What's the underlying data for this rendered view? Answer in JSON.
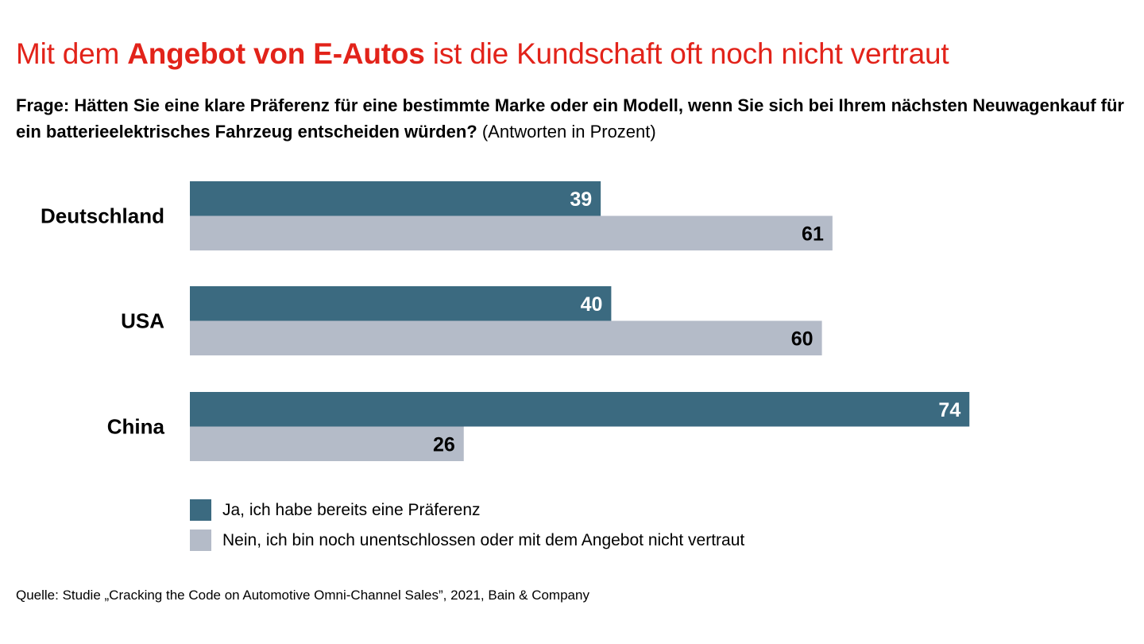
{
  "header": {
    "title_pre": "Mit dem ",
    "title_bold": "Angebot von E-Autos",
    "title_post": " ist die Kundschaft oft noch nicht vertraut",
    "question_bold": "Frage: Hätten Sie eine klare Präferenz für eine bestimmte Marke oder ein Modell, wenn Sie sich bei Ihrem nächsten Neuwagenkauf für ein batterieelektrisches Fahrzeug entscheiden würden?",
    "question_note": " (Antworten in Prozent)"
  },
  "colors": {
    "title_red": "#e2231a",
    "series_yes": "#3b6a80",
    "series_no": "#b4bbc8"
  },
  "chart_data": {
    "type": "bar",
    "orientation": "horizontal",
    "title": "Mit dem Angebot von E-Autos ist die Kundschaft oft noch nicht vertraut",
    "subtitle": "Frage: Hätten Sie eine klare Präferenz für eine bestimmte Marke oder ein Modell, wenn Sie sich bei Ihrem nächsten Neuwagenkauf für ein batterieelektrisches Fahrzeug entscheiden würden? (Antworten in Prozent)",
    "xlabel": "",
    "ylabel": "",
    "xlim": [
      0,
      100
    ],
    "grid": false,
    "categories": [
      "Deutschland",
      "USA",
      "China"
    ],
    "series": [
      {
        "name": "Ja, ich habe bereits eine Präferenz",
        "color": "#3b6a80",
        "label_color": "#ffffff",
        "values": [
          39,
          40,
          74
        ]
      },
      {
        "name": "Nein, ich bin noch unentschlossen oder mit dem Angebot nicht vertraut",
        "color": "#b4bbc8",
        "label_color": "#000000",
        "values": [
          61,
          60,
          26
        ]
      }
    ],
    "legend_position": "bottom-left",
    "data_labels": true
  },
  "legend": [
    {
      "label": "Ja, ich habe bereits eine Präferenz"
    },
    {
      "label": "Nein, ich bin noch unentschlossen oder mit dem Angebot nicht vertraut"
    }
  ],
  "footer": {
    "source": "Quelle: Studie „Cracking the Code on Automotive Omni-Channel Sales”, 2021, Bain & Company"
  }
}
